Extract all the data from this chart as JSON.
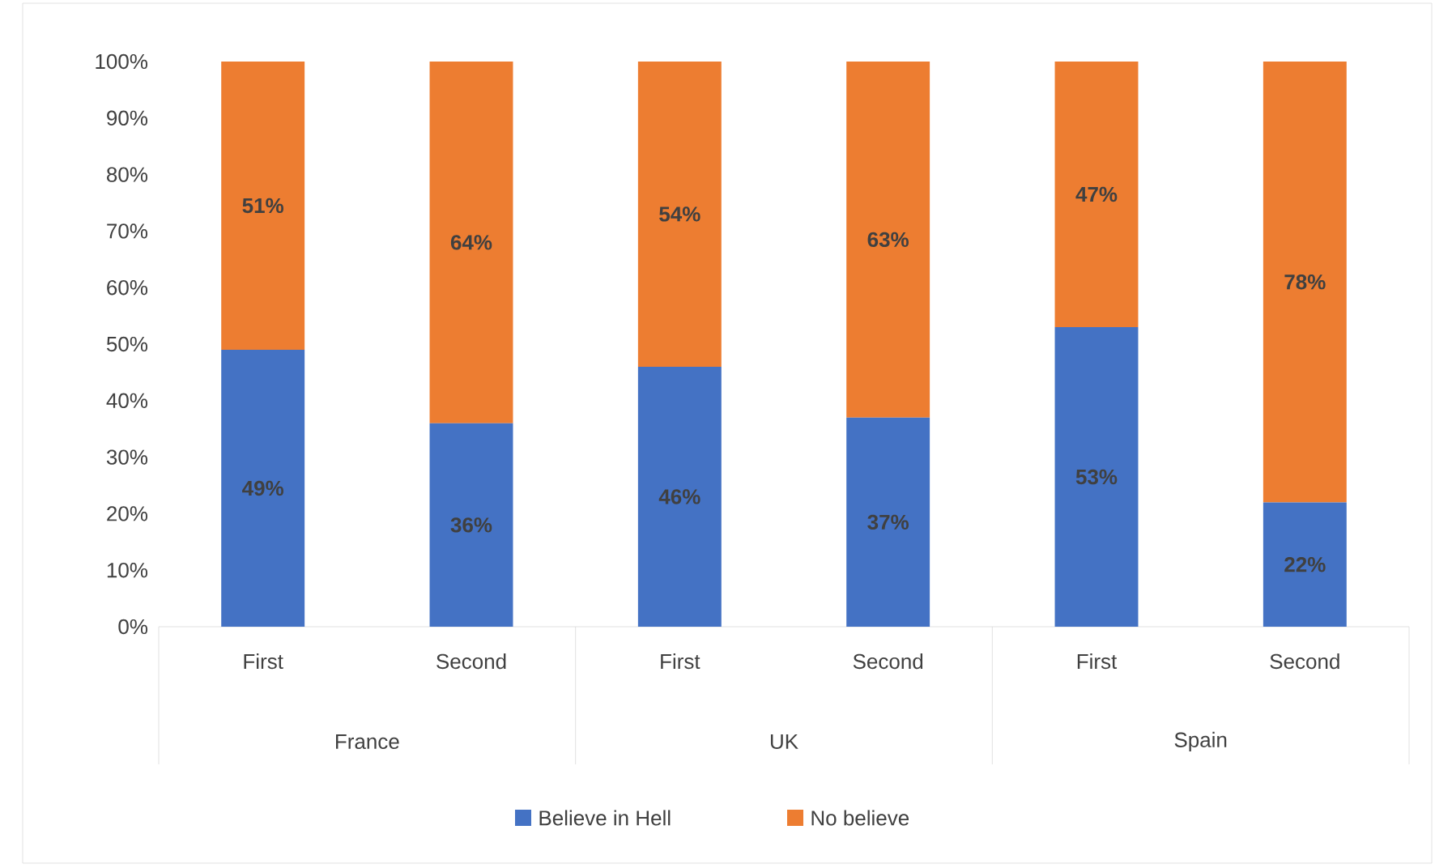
{
  "chart_data": {
    "type": "bar",
    "stacked": true,
    "categories": [
      "First",
      "Second",
      "First",
      "Second",
      "First",
      "Second"
    ],
    "annotations": [
      "France",
      "UK",
      "Spain"
    ],
    "series": [
      {
        "name": "Believe in Hell",
        "color": "#4472c4",
        "values": [
          49,
          36,
          46,
          37,
          53,
          22
        ],
        "value_labels": [
          "49%",
          "36%",
          "46%",
          "37%",
          "53%",
          "22%"
        ]
      },
      {
        "name": "No believe",
        "color": "#ed7d31",
        "values": [
          51,
          64,
          54,
          63,
          47,
          78
        ],
        "value_labels": [
          "51%",
          "64%",
          "54%",
          "63%",
          "47%",
          "78%"
        ]
      }
    ],
    "ylim": [
      0,
      100
    ],
    "yticks": [
      {
        "value": 0,
        "label": "0%"
      },
      {
        "value": 10,
        "label": "10%"
      },
      {
        "value": 20,
        "label": "20%"
      },
      {
        "value": 30,
        "label": "30%"
      },
      {
        "value": 40,
        "label": "40%"
      },
      {
        "value": 50,
        "label": "50%"
      },
      {
        "value": 60,
        "label": "60%"
      },
      {
        "value": 70,
        "label": "70%"
      },
      {
        "value": 80,
        "label": "80%"
      },
      {
        "value": 90,
        "label": "90%"
      },
      {
        "value": 100,
        "label": "100%"
      }
    ],
    "legend": "bottom"
  }
}
